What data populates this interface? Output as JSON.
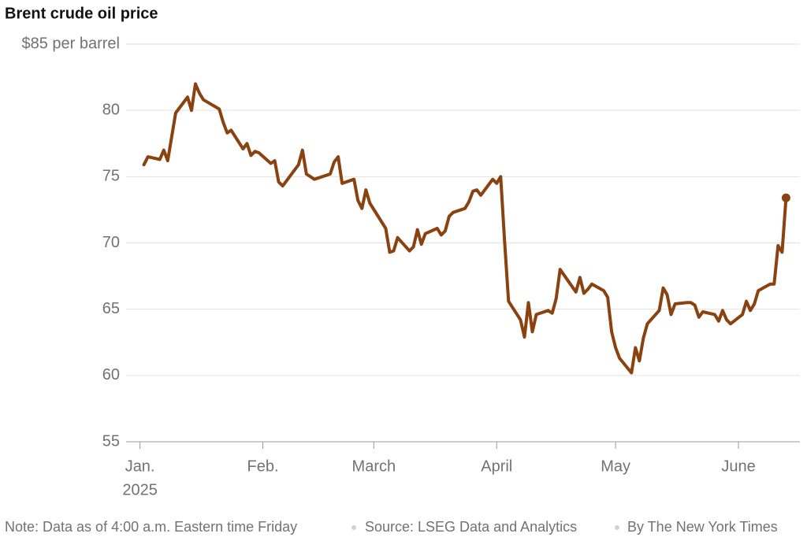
{
  "chart_data": {
    "type": "line",
    "title": "Brent crude oil price",
    "color": "#8a4210",
    "end_marker": true,
    "grid": true,
    "x": [
      2,
      3,
      6,
      7,
      8,
      10,
      13,
      14,
      15,
      16,
      17,
      21,
      22,
      23,
      24,
      27,
      28,
      29,
      30,
      31,
      34,
      35,
      36,
      37,
      38,
      41,
      42,
      43,
      44,
      45,
      49,
      50,
      51,
      52,
      55,
      56,
      57,
      58,
      59,
      63,
      64,
      65,
      66,
      69,
      70,
      71,
      72,
      73,
      76,
      77,
      78,
      79,
      80,
      83,
      84,
      85,
      86,
      87,
      90,
      91,
      92,
      93,
      94,
      97,
      98,
      99,
      100,
      101,
      104,
      105,
      106,
      107,
      111,
      112,
      113,
      114,
      115,
      118,
      119,
      120,
      121,
      122,
      125,
      126,
      127,
      128,
      129,
      132,
      133,
      134,
      135,
      136,
      139,
      140,
      141,
      142,
      143,
      146,
      147,
      148,
      149,
      150,
      153,
      154,
      155,
      156,
      157,
      160,
      161,
      162,
      163,
      164
    ],
    "values": [
      75.9,
      76.5,
      76.3,
      77.0,
      76.2,
      79.8,
      81.0,
      80.0,
      82.0,
      81.3,
      80.8,
      80.1,
      79.1,
      78.3,
      78.5,
      77.1,
      77.5,
      76.6,
      76.9,
      76.8,
      76.0,
      76.2,
      74.6,
      74.3,
      74.7,
      75.9,
      77.0,
      75.2,
      75.0,
      74.8,
      75.2,
      76.1,
      76.5,
      74.5,
      74.8,
      73.2,
      72.6,
      74.0,
      73.0,
      71.1,
      69.3,
      69.4,
      70.4,
      69.4,
      69.7,
      71.0,
      69.9,
      70.7,
      71.1,
      70.6,
      70.9,
      72.0,
      72.3,
      72.6,
      73.1,
      73.9,
      74.0,
      73.6,
      74.8,
      74.5,
      75.0,
      70.1,
      65.6,
      64.2,
      62.9,
      65.5,
      63.3,
      64.6,
      64.9,
      64.7,
      65.8,
      68.0,
      66.3,
      67.4,
      66.2,
      66.5,
      66.9,
      66.4,
      65.9,
      63.3,
      62.1,
      61.3,
      60.2,
      62.1,
      61.1,
      62.8,
      63.9,
      64.9,
      66.6,
      66.1,
      64.6,
      65.4,
      65.5,
      65.5,
      65.3,
      64.4,
      64.8,
      64.6,
      64.1,
      64.9,
      64.2,
      63.9,
      64.6,
      65.6,
      64.9,
      65.4,
      66.4,
      66.9,
      66.9,
      69.8,
      69.3,
      73.4
    ],
    "xlim": [
      -2.5,
      167.5
    ],
    "xticks": [
      {
        "value": 1,
        "label": "Jan."
      },
      {
        "value": 32,
        "label": "Feb."
      },
      {
        "value": 60,
        "label": "March"
      },
      {
        "value": 91,
        "label": "April"
      },
      {
        "value": 121,
        "label": "May"
      },
      {
        "value": 152,
        "label": "June"
      }
    ],
    "xtick_sublabel": "2025",
    "ylim": [
      55,
      85
    ],
    "yticks": [
      55,
      60,
      65,
      70,
      75,
      80,
      {
        "value": 85,
        "label": "$85 per barrel"
      }
    ],
    "note": "Note: Data as of 4:00 a.m. Eastern time Friday",
    "source": "Source: LSEG Data and Analytics",
    "credit": "By The New York Times"
  }
}
